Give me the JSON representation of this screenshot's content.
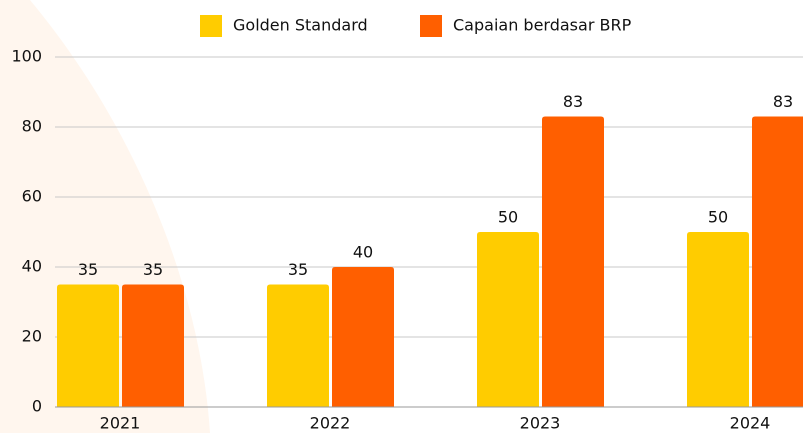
{
  "chart_data": {
    "type": "bar",
    "categories": [
      "2021",
      "2022",
      "2023",
      "2024"
    ],
    "series": [
      {
        "name": "Golden Standard",
        "color": "#ffcc00",
        "values": [
          35,
          35,
          50,
          50
        ]
      },
      {
        "name": "Capaian berdasar BRP",
        "color": "#ff5f00",
        "values": [
          35,
          40,
          83,
          83
        ]
      }
    ],
    "ylim": [
      0,
      100
    ],
    "yticks": [
      0,
      20,
      40,
      60,
      80,
      100
    ],
    "grid": true,
    "legend": "top"
  }
}
